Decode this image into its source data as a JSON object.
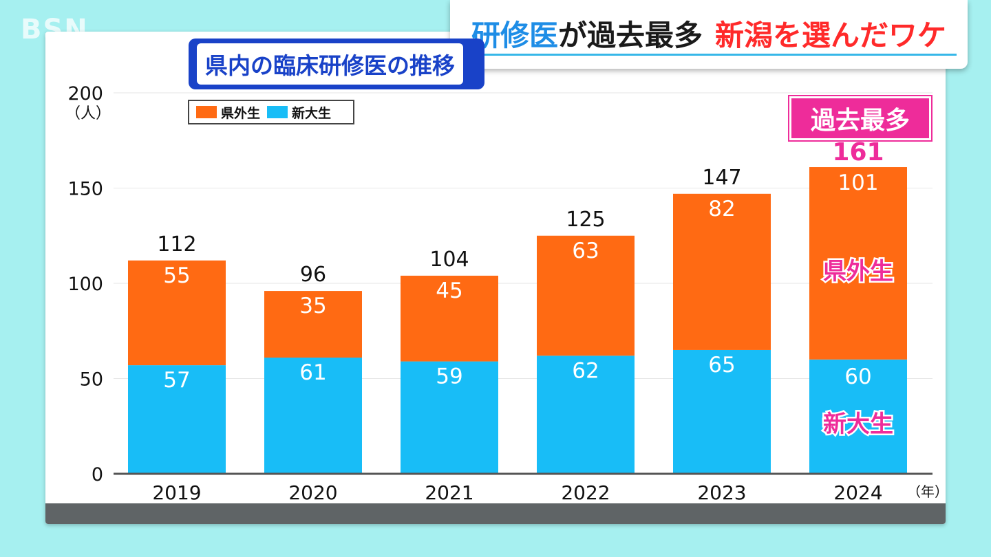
{
  "station_logo": "BSN",
  "headline": {
    "part1": "研修医",
    "part2": "が過去最多",
    "part3": "新潟を選んだワケ"
  },
  "badge": "過去最多",
  "legend": [
    {
      "label": "県外生",
      "color": "#ff6a13"
    },
    {
      "label": "新大生",
      "color": "#18bdf7"
    }
  ],
  "colors": {
    "outside": "#ff6a13",
    "niigata": "#18bdf7",
    "highlight": "#ee2c9a"
  },
  "chart_data": {
    "type": "bar",
    "stacked": true,
    "title": "県内の臨床研修医の推移",
    "ylabel": "（人）",
    "xlabel": "（年）",
    "categories": [
      "2019",
      "2020",
      "2021",
      "2022",
      "2023",
      "2024"
    ],
    "series": [
      {
        "name": "新大生",
        "values": [
          57,
          61,
          59,
          62,
          65,
          60
        ]
      },
      {
        "name": "県外生",
        "values": [
          55,
          35,
          45,
          63,
          82,
          101
        ]
      }
    ],
    "totals": [
      112,
      96,
      104,
      125,
      147,
      161
    ],
    "ylim": [
      0,
      200
    ],
    "yticks": [
      0,
      50,
      100,
      150,
      200
    ],
    "grid": true,
    "legend": "top-left",
    "annotations": [
      {
        "category": "2024",
        "label": "県外生",
        "series": "県外生"
      },
      {
        "category": "2024",
        "label": "新大生",
        "series": "新大生"
      }
    ]
  }
}
